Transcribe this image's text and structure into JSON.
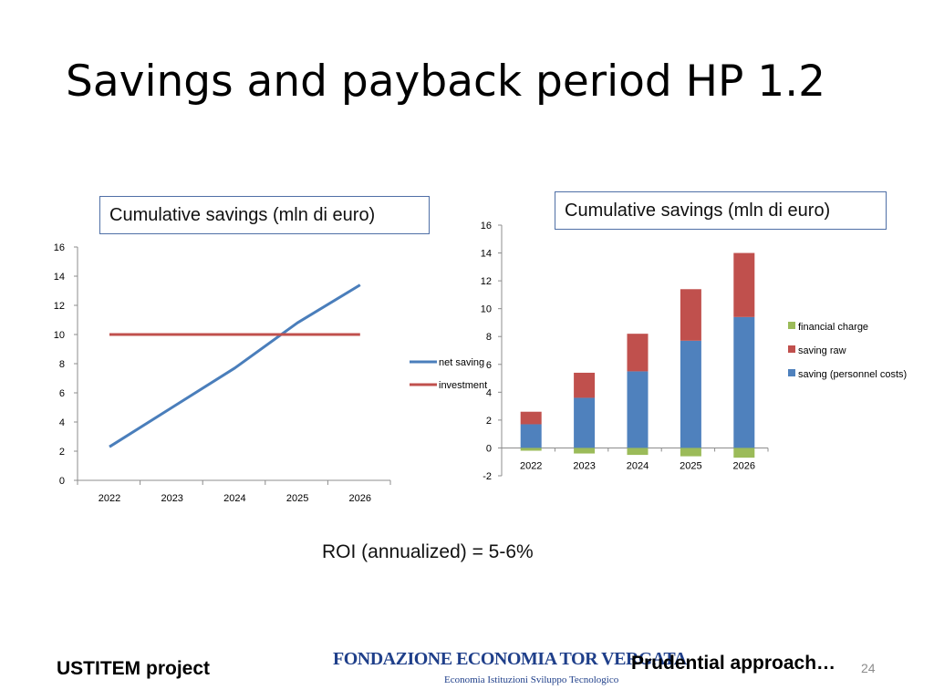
{
  "slide": {
    "title": "Savings and payback period HP 1.2",
    "roi_text": "ROI (annualized) = 5-6%",
    "footer_left": "USTITEM project",
    "footer_right": "Prudential approach…",
    "page_number": "24",
    "logo": {
      "main_text": "FONDAZIONE ECONOMIA TOR VERGATA",
      "sub_text": "Economia Istituzioni Sviluppo Tecnologico",
      "color": "#1f3f8a"
    }
  },
  "chart_data": [
    {
      "type": "line",
      "title": "Cumulative savings (mln di euro)",
      "categories": [
        "2022",
        "2023",
        "2024",
        "2025",
        "2026"
      ],
      "series": [
        {
          "name": "net saving",
          "values": [
            2.3,
            5.0,
            7.7,
            10.8,
            13.4
          ],
          "color": "#4a7ebb"
        },
        {
          "name": "investment",
          "values": [
            10,
            10,
            10,
            10,
            10
          ],
          "color": "#c0504d"
        }
      ],
      "ylim": [
        0,
        16
      ],
      "yticks": [
        0,
        2,
        4,
        6,
        8,
        10,
        12,
        14,
        16
      ],
      "legend": "right"
    },
    {
      "type": "bar",
      "stacked": true,
      "title": "Cumulative savings (mln di euro)",
      "categories": [
        "2022",
        "2023",
        "2024",
        "2025",
        "2026"
      ],
      "series": [
        {
          "name": "saving (personnel costs)",
          "values": [
            1.7,
            3.6,
            5.5,
            7.7,
            9.4
          ],
          "color": "#4f81bd"
        },
        {
          "name": "saving raw",
          "values": [
            0.9,
            1.8,
            2.7,
            3.7,
            4.6
          ],
          "color": "#c0504d"
        },
        {
          "name": "financial charge",
          "values": [
            -0.2,
            -0.4,
            -0.5,
            -0.6,
            -0.7
          ],
          "color": "#9bbb59"
        }
      ],
      "ylim": [
        -2,
        16
      ],
      "yticks": [
        -2,
        0,
        2,
        4,
        6,
        8,
        10,
        12,
        14,
        16
      ],
      "legend": "right"
    }
  ]
}
